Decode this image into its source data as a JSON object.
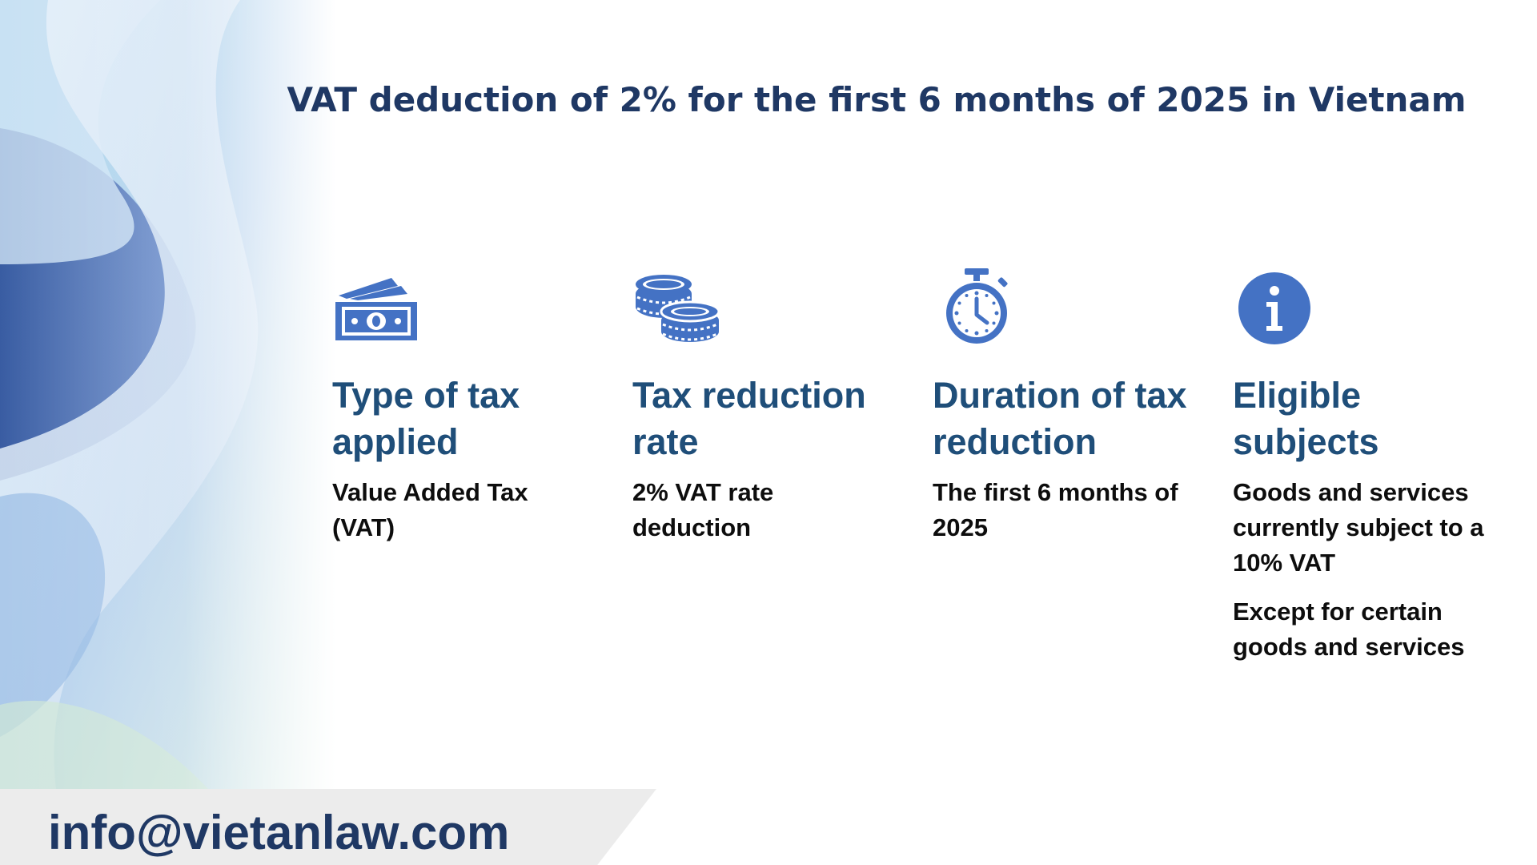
{
  "title": "VAT deduction of 2% for the first 6 months of 2025 in Vietnam",
  "colors": {
    "title": "#1f3864",
    "heading": "#1f4e79",
    "icon": "#4472c4",
    "body_text": "#0d0d0d",
    "footer_bg": "#ececec"
  },
  "cards": [
    {
      "icon": "money-bills-icon",
      "heading": "Type of tax applied",
      "description": "Value Added Tax (VAT)"
    },
    {
      "icon": "coins-icon",
      "heading": "Tax reduction rate",
      "description": "2% VAT rate deduction"
    },
    {
      "icon": "stopwatch-icon",
      "heading": "Duration of tax reduction",
      "description": "The first 6 months of 2025"
    },
    {
      "icon": "info-icon",
      "heading": "Eligible subjects",
      "description": "Goods and services currently subject to a 10% VAT",
      "note": "Except for certain goods and services"
    }
  ],
  "footer": {
    "email": "info@vietanlaw.com"
  }
}
